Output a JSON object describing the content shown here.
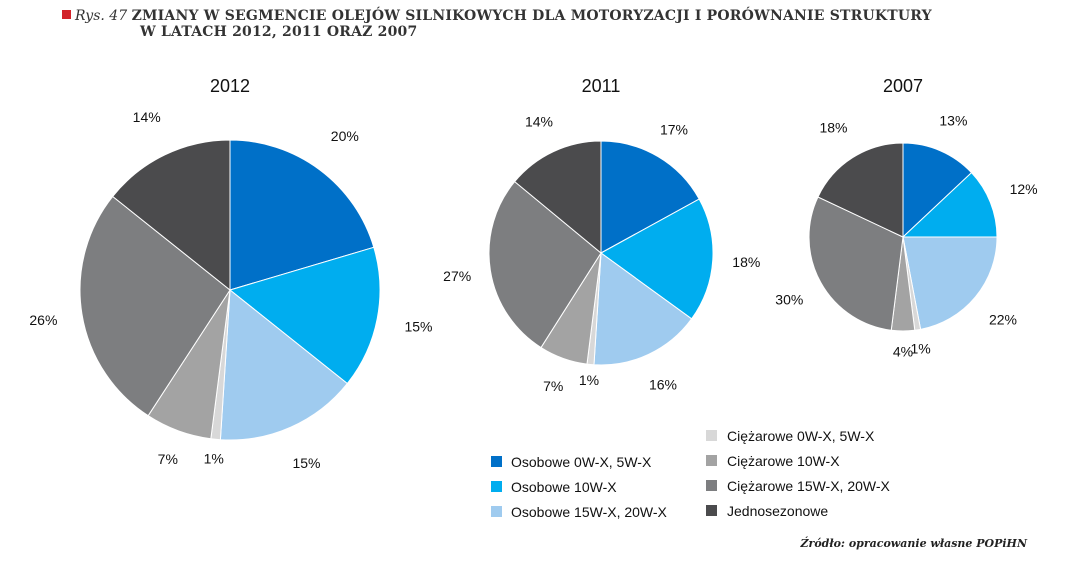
{
  "header": {
    "prefix": "Rys. 47",
    "title_line1": "ZMIANY W SEGMENCIE OLEJÓW SILNIKOWYCH DLA MOTORYZACJI I PORÓWNANIE STRUKTURY",
    "title_line2": "W LATACH 2012, 2011 ORAZ 2007"
  },
  "source": "Źródło: opracowanie własne POPiHN",
  "colors": [
    "#0070c8",
    "#00adef",
    "#9fcbef",
    "#d8d8d8",
    "#a3a3a3",
    "#7d7e80",
    "#4b4b4d"
  ],
  "chart_data": [
    {
      "type": "pie",
      "title": "2012",
      "categories": [
        "Osobowe 0W-X, 5W-X",
        "Osobowe 10W-X",
        "Osobowe 15W-X, 20W-X",
        "Ciężarowe 0W-X, 5W-X",
        "Ciężarowe 10W-X",
        "Ciężarowe 15W-X, 20W-X",
        "Jednosezonowe"
      ],
      "values": [
        20,
        15,
        15,
        1,
        7,
        26,
        14
      ],
      "labels": [
        "20%",
        "15%",
        "15%",
        "1%",
        "7%",
        "26%",
        "14%"
      ]
    },
    {
      "type": "pie",
      "title": "2011",
      "categories": [
        "Osobowe 0W-X, 5W-X",
        "Osobowe 10W-X",
        "Osobowe 15W-X, 20W-X",
        "Ciężarowe 0W-X, 5W-X",
        "Ciężarowe 10W-X",
        "Ciężarowe 15W-X, 20W-X",
        "Jednosezonowe"
      ],
      "values": [
        17,
        18,
        16,
        1,
        7,
        27,
        14
      ],
      "labels": [
        "17%",
        "18%",
        "16%",
        "1%",
        "7%",
        "27%",
        "14%"
      ]
    },
    {
      "type": "pie",
      "title": "2007",
      "categories": [
        "Osobowe 0W-X, 5W-X",
        "Osobowe 10W-X",
        "Osobowe 15W-X, 20W-X",
        "Ciężarowe 0W-X, 5W-X",
        "Ciężarowe 10W-X",
        "Ciężarowe 15W-X, 20W-X",
        "Jednosezonowe"
      ],
      "values": [
        13,
        12,
        22,
        1,
        4,
        30,
        18
      ],
      "labels": [
        "13%",
        "12%",
        "22%",
        "1%",
        "4%",
        "30%",
        "18%"
      ]
    }
  ],
  "legend": {
    "col1": [
      "Osobowe 0W-X, 5W-X",
      "Osobowe 10W-X",
      "Osobowe 15W-X, 20W-X"
    ],
    "col2": [
      "Ciężarowe 0W-X, 5W-X",
      "Ciężarowe 10W-X",
      "Ciężarowe 15W-X, 20W-X",
      "Jednosezonowe"
    ]
  }
}
